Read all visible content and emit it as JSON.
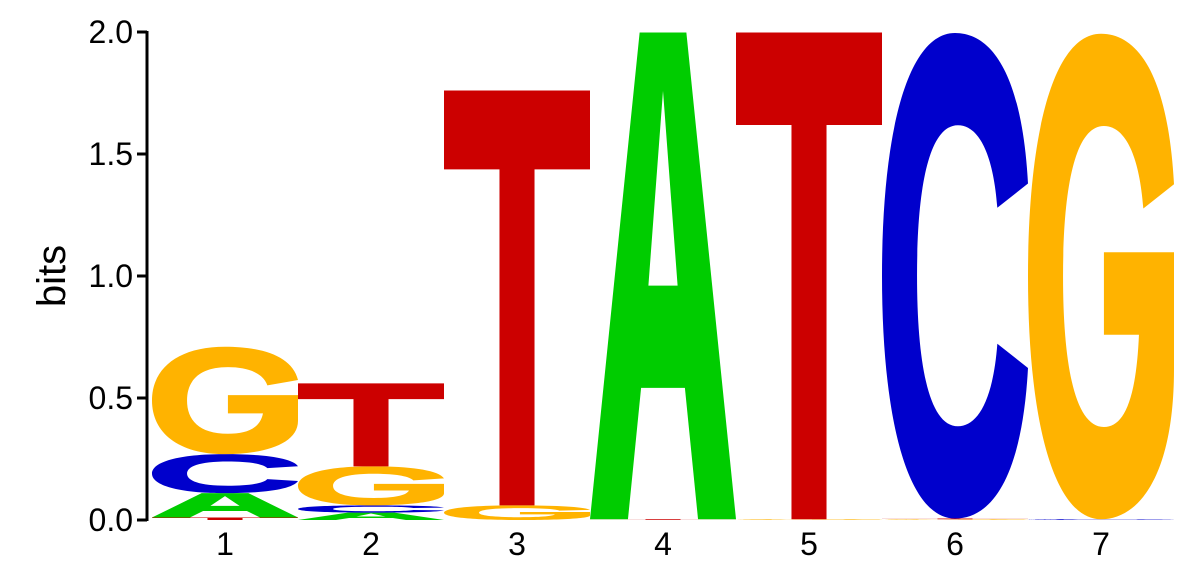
{
  "colors": {
    "A": "#00cc00",
    "C": "#0000cc",
    "G": "#ffb300",
    "T": "#cc0000",
    "axis": "#000000",
    "background": "#ffffff"
  },
  "chart_data": {
    "type": "sequence_logo",
    "title": "",
    "xlabel": "",
    "ylabel": "bits",
    "ylim": [
      0,
      2.0
    ],
    "yticks": [
      "0.0",
      "0.5",
      "1.0",
      "1.5",
      "2.0"
    ],
    "grid": false,
    "positions": [
      {
        "label": "1",
        "stack": [
          {
            "letter": "T",
            "bits": 0.01
          },
          {
            "letter": "A",
            "bits": 0.1
          },
          {
            "letter": "C",
            "bits": 0.16
          },
          {
            "letter": "G",
            "bits": 0.44
          }
        ]
      },
      {
        "label": "2",
        "stack": [
          {
            "letter": "A",
            "bits": 0.03
          },
          {
            "letter": "C",
            "bits": 0.03
          },
          {
            "letter": "G",
            "bits": 0.16
          },
          {
            "letter": "T",
            "bits": 0.34
          }
        ]
      },
      {
        "label": "3",
        "stack": [
          {
            "letter": "G",
            "bits": 0.06
          },
          {
            "letter": "T",
            "bits": 1.7
          }
        ]
      },
      {
        "label": "4",
        "stack": [
          {
            "letter": "T",
            "bits": 0.003
          },
          {
            "letter": "A",
            "bits": 1.995
          }
        ]
      },
      {
        "label": "5",
        "stack": [
          {
            "letter": "G",
            "bits": 0.003
          },
          {
            "letter": "T",
            "bits": 1.995
          }
        ]
      },
      {
        "label": "6",
        "stack": [
          {
            "letter": "G",
            "bits": 0.003
          },
          {
            "letter": "T",
            "bits": 0.003
          },
          {
            "letter": "C",
            "bits": 1.99
          }
        ]
      },
      {
        "label": "7",
        "stack": [
          {
            "letter": "C",
            "bits": 0.003
          },
          {
            "letter": "G",
            "bits": 1.99
          }
        ]
      }
    ]
  }
}
